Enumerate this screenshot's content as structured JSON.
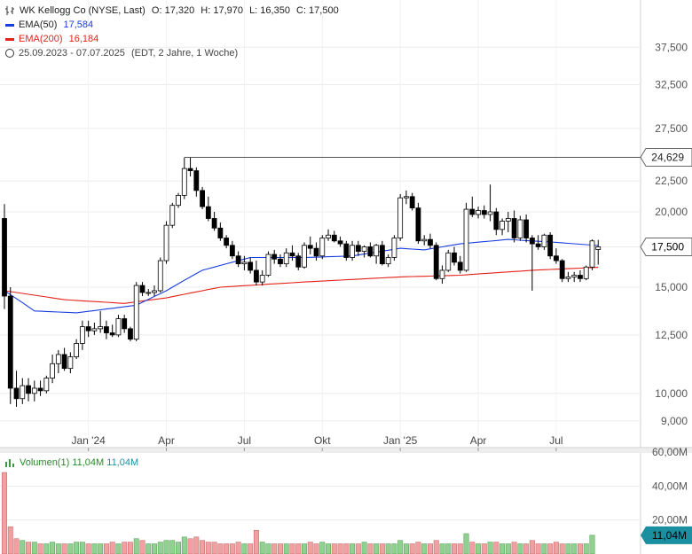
{
  "legend": {
    "title": "WK Kellogg Co (NYSE, Last)",
    "open": "O: 17,320",
    "high": "H: 17,970",
    "low": "L: 16,350",
    "close": "C: 17,500",
    "ema50_label": "EMA(50)",
    "ema50_value": "17,584",
    "ema200_label": "EMA(200)",
    "ema200_value": "16,184",
    "range": "25.09.2023 - 07.07.2025",
    "range_note": "(EDT, 2 Jahre, 1 Woche)"
  },
  "volume_legend": {
    "label": "Volumen(1)",
    "value1": "11,04M",
    "value2": "11,04M"
  },
  "colors": {
    "up": "#ffffff",
    "down": "#000000",
    "ema50": "#1a3de0",
    "ema200": "#e2231a",
    "vol_up": "#90d090",
    "vol_down": "#f0a0a0",
    "current_label_bg": "#ffffff",
    "volume_badge_bg": "#1a8fa0"
  },
  "chart_data": {
    "type": "candlestick",
    "price_axis": {
      "scale": "log",
      "ticks": [
        "9,000",
        "10,000",
        "12,500",
        "15,000",
        "17,500",
        "20,000",
        "22,500",
        "27,500",
        "32,500",
        "37,500"
      ],
      "tick_values": [
        9.0,
        10.0,
        12.5,
        15.0,
        17.5,
        20.0,
        22.5,
        27.5,
        32.5,
        37.5
      ]
    },
    "x_axis_labels": [
      "Jan '24",
      "Apr",
      "Jul",
      "Okt",
      "Jan '25",
      "Apr",
      "Jul"
    ],
    "x_axis_label_weeks": [
      14,
      27,
      40,
      53,
      66,
      79,
      92
    ],
    "current_price_label": "17,500",
    "reference_line_label": "24,629",
    "reference_line_value": 24.629,
    "reference_line_start_week": 30,
    "candles": [
      [
        19.5,
        20.6,
        13.8,
        14.5
      ],
      [
        14.5,
        15.0,
        9.6,
        10.2
      ],
      [
        10.2,
        10.9,
        9.5,
        9.8
      ],
      [
        9.8,
        10.6,
        9.6,
        10.3
      ],
      [
        10.3,
        10.6,
        9.7,
        10.0
      ],
      [
        10.0,
        10.5,
        9.7,
        10.2
      ],
      [
        10.2,
        10.5,
        9.9,
        10.1
      ],
      [
        10.1,
        10.7,
        10.0,
        10.6
      ],
      [
        10.6,
        11.6,
        10.4,
        11.2
      ],
      [
        11.2,
        11.8,
        10.8,
        11.6
      ],
      [
        11.6,
        11.9,
        10.9,
        11.0
      ],
      [
        11.0,
        11.7,
        10.8,
        11.5
      ],
      [
        11.5,
        12.3,
        11.4,
        12.1
      ],
      [
        12.1,
        13.2,
        11.8,
        12.9
      ],
      [
        12.9,
        13.2,
        12.4,
        12.7
      ],
      [
        12.7,
        13.1,
        12.5,
        12.8
      ],
      [
        12.8,
        13.7,
        12.6,
        12.9
      ],
      [
        12.9,
        13.2,
        12.3,
        12.6
      ],
      [
        12.6,
        13.0,
        12.4,
        12.5
      ],
      [
        12.5,
        13.5,
        12.4,
        13.3
      ],
      [
        13.3,
        13.5,
        12.6,
        12.8
      ],
      [
        12.8,
        12.9,
        12.2,
        12.3
      ],
      [
        12.3,
        15.3,
        12.2,
        15.1
      ],
      [
        15.1,
        15.3,
        14.5,
        14.7
      ],
      [
        14.7,
        14.9,
        14.5,
        14.7
      ],
      [
        14.7,
        15.1,
        14.5,
        14.8
      ],
      [
        14.8,
        16.8,
        14.7,
        16.6
      ],
      [
        16.6,
        19.3,
        16.4,
        19.0
      ],
      [
        19.0,
        20.7,
        18.8,
        20.5
      ],
      [
        20.5,
        21.5,
        20.3,
        21.3
      ],
      [
        21.3,
        24.6,
        21.0,
        23.6
      ],
      [
        23.6,
        24.6,
        22.9,
        23.4
      ],
      [
        23.4,
        23.7,
        21.2,
        21.7
      ],
      [
        21.7,
        22.0,
        20.2,
        20.4
      ],
      [
        20.4,
        21.2,
        19.3,
        19.5
      ],
      [
        19.5,
        20.0,
        18.6,
        18.8
      ],
      [
        18.8,
        19.2,
        17.9,
        18.1
      ],
      [
        18.1,
        18.3,
        17.4,
        17.6
      ],
      [
        17.6,
        17.9,
        16.7,
        16.9
      ],
      [
        16.9,
        17.2,
        16.2,
        16.4
      ],
      [
        16.4,
        16.9,
        16.0,
        16.5
      ],
      [
        16.5,
        16.8,
        15.8,
        16.0
      ],
      [
        16.0,
        16.6,
        15.1,
        15.3
      ],
      [
        15.3,
        16.0,
        15.1,
        15.7
      ],
      [
        15.7,
        17.2,
        15.6,
        17.0
      ],
      [
        17.0,
        17.3,
        16.4,
        16.7
      ],
      [
        16.7,
        17.0,
        16.2,
        16.4
      ],
      [
        16.4,
        17.4,
        16.2,
        17.1
      ],
      [
        17.1,
        17.6,
        16.6,
        16.9
      ],
      [
        16.9,
        17.1,
        16.0,
        16.2
      ],
      [
        16.2,
        17.8,
        16.1,
        17.6
      ],
      [
        17.6,
        18.2,
        17.0,
        17.4
      ],
      [
        17.4,
        17.8,
        16.6,
        16.9
      ],
      [
        16.9,
        18.3,
        16.7,
        18.1
      ],
      [
        18.1,
        18.7,
        17.9,
        18.3
      ],
      [
        18.3,
        18.6,
        17.8,
        17.9
      ],
      [
        17.9,
        18.2,
        17.5,
        17.7
      ],
      [
        17.7,
        17.9,
        16.6,
        16.8
      ],
      [
        16.8,
        17.9,
        16.6,
        17.6
      ],
      [
        17.6,
        17.9,
        16.9,
        17.2
      ],
      [
        17.2,
        17.6,
        16.8,
        17.5
      ],
      [
        17.5,
        17.8,
        16.8,
        16.9
      ],
      [
        16.9,
        17.7,
        16.4,
        17.6
      ],
      [
        17.6,
        17.9,
        16.3,
        16.4
      ],
      [
        16.4,
        17.0,
        16.2,
        16.8
      ],
      [
        16.8,
        18.3,
        16.6,
        18.1
      ],
      [
        18.1,
        21.4,
        17.9,
        21.1
      ],
      [
        21.1,
        21.7,
        20.6,
        21.2
      ],
      [
        21.2,
        21.5,
        20.1,
        20.3
      ],
      [
        20.3,
        20.7,
        17.7,
        17.9
      ],
      [
        17.9,
        18.3,
        17.6,
        18.0
      ],
      [
        18.0,
        18.4,
        17.4,
        17.6
      ],
      [
        17.6,
        17.8,
        15.4,
        15.5
      ],
      [
        15.5,
        16.3,
        15.2,
        16.0
      ],
      [
        16.0,
        17.3,
        15.9,
        17.1
      ],
      [
        17.1,
        17.5,
        16.3,
        16.5
      ],
      [
        16.5,
        16.9,
        15.8,
        16.0
      ],
      [
        16.0,
        20.7,
        15.9,
        20.2
      ],
      [
        20.2,
        21.2,
        19.6,
        19.8
      ],
      [
        19.8,
        20.4,
        19.5,
        20.1
      ],
      [
        20.1,
        20.5,
        19.5,
        19.8
      ],
      [
        19.8,
        22.2,
        19.3,
        20.0
      ],
      [
        20.0,
        20.3,
        18.3,
        18.7
      ],
      [
        18.7,
        19.5,
        18.3,
        19.3
      ],
      [
        19.3,
        20.0,
        18.5,
        19.5
      ],
      [
        19.5,
        20.1,
        17.8,
        18.1
      ],
      [
        18.1,
        19.7,
        17.9,
        19.4
      ],
      [
        19.4,
        19.8,
        17.8,
        18.1
      ],
      [
        18.1,
        18.3,
        14.8,
        17.7
      ],
      [
        17.7,
        18.3,
        17.3,
        17.5
      ],
      [
        17.5,
        18.4,
        17.3,
        18.3
      ],
      [
        18.3,
        18.5,
        16.7,
        16.9
      ],
      [
        16.9,
        17.4,
        16.4,
        16.6
      ],
      [
        16.6,
        16.7,
        15.3,
        15.5
      ],
      [
        15.5,
        15.9,
        15.3,
        15.6
      ],
      [
        15.6,
        15.9,
        15.3,
        15.7
      ],
      [
        15.7,
        16.0,
        15.3,
        15.5
      ],
      [
        15.5,
        16.3,
        15.4,
        16.2
      ],
      [
        16.2,
        18.0,
        16.0,
        17.9
      ],
      [
        17.32,
        17.97,
        16.35,
        17.5
      ]
    ],
    "ema50_anchor_weeks": [
      0,
      5,
      12,
      22,
      27,
      33,
      41,
      50,
      58,
      66,
      70,
      76,
      84,
      92,
      99
    ],
    "ema50_anchor_values": [
      14.8,
      13.7,
      13.6,
      14.0,
      14.8,
      16.0,
      16.8,
      16.8,
      16.9,
      17.4,
      17.3,
      17.7,
      18.0,
      17.8,
      17.584
    ],
    "ema200_anchor_weeks": [
      0,
      10,
      20,
      27,
      36,
      50,
      66,
      76,
      88,
      99
    ],
    "ema200_anchor_values": [
      14.8,
      14.3,
      14.1,
      14.4,
      15.0,
      15.3,
      15.6,
      15.7,
      16.0,
      16.184
    ],
    "volume_axis": {
      "ticks": [
        "20,00M",
        "40,00M",
        "60,00M"
      ],
      "tick_values": [
        20,
        40,
        60
      ],
      "max": 60
    },
    "volume_current_label": "11,04M",
    "volumes": [
      48,
      16,
      9,
      8,
      7,
      7,
      6,
      6,
      7,
      6,
      6,
      6,
      7,
      7,
      6,
      6,
      6,
      6,
      7,
      6,
      7,
      7,
      9,
      8,
      6,
      6,
      7,
      8,
      8,
      7,
      10,
      9,
      10,
      8,
      7,
      7,
      6,
      6,
      6,
      7,
      6,
      6,
      14,
      7,
      6,
      6,
      6,
      6,
      6,
      6,
      6,
      7,
      6,
      7,
      6,
      6,
      6,
      6,
      6,
      6,
      7,
      6,
      6,
      6,
      6,
      6,
      8,
      6,
      6,
      7,
      6,
      6,
      8,
      6,
      6,
      6,
      6,
      12,
      7,
      6,
      6,
      7,
      7,
      6,
      6,
      7,
      6,
      6,
      8,
      6,
      6,
      6,
      7,
      6,
      6,
      6,
      6,
      6,
      11.04
    ]
  }
}
